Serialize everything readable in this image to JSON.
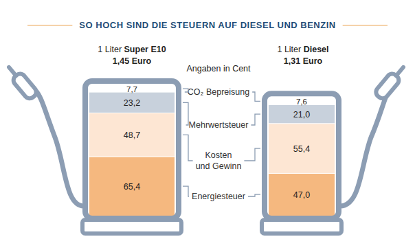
{
  "chart_data": {
    "type": "bar",
    "stacked": true,
    "data_labels": true,
    "tick_labels": false,
    "title": "SO HOCH SIND DIE STEUERN AUF DIESEL UND BENZIN",
    "subtitle": "Angaben in Cent",
    "categories": [
      "1 Liter Super E10",
      "1 Liter Diesel"
    ],
    "totals": [
      145,
      131
    ],
    "total_labels": [
      "1,45 Euro",
      "1,31 Euro"
    ],
    "ylim": [
      0,
      145
    ],
    "series": [
      {
        "name": "Energiesteuer",
        "color": "#f5b87f",
        "values": [
          65.4,
          47.0
        ],
        "value_labels": [
          "65,4",
          "47,0"
        ]
      },
      {
        "name": "Kosten und Gewinn",
        "color": "#fde6d3",
        "values": [
          48.7,
          55.4
        ],
        "value_labels": [
          "48,7",
          "55,4"
        ]
      },
      {
        "name": "Mehrwertsteuer",
        "color": "#c8d1dc",
        "values": [
          23.2,
          21.0
        ],
        "value_labels": [
          "23,2",
          "21,0"
        ]
      },
      {
        "name": "CO₂ Bepreisung",
        "color": "#ffffff",
        "values": [
          7.7,
          7.6
        ],
        "value_labels": [
          "7,7",
          "7,6"
        ]
      }
    ]
  }
}
